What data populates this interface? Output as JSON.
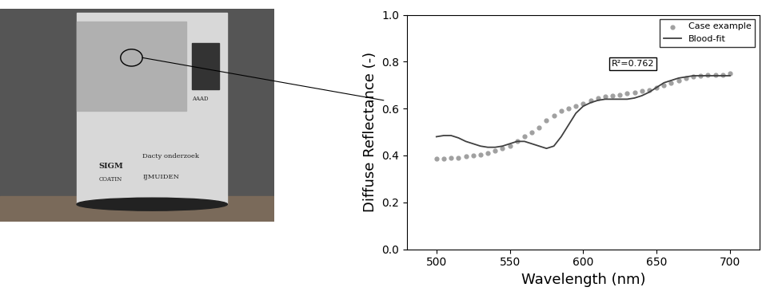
{
  "chart_data": {
    "type": "scatter",
    "xlabel": "Wavelength (nm)",
    "ylabel": "Diffuse Reflectance (-)",
    "xlim": [
      480,
      720
    ],
    "xticks": [
      500,
      550,
      600,
      650,
      700
    ],
    "ylim": [
      0.0,
      1.0
    ],
    "yticks": [
      0.0,
      0.2,
      0.4,
      0.6,
      0.8,
      1.0
    ],
    "legend": "upper right",
    "annotation": "R²=0.762",
    "x": [
      500,
      505,
      510,
      515,
      520,
      525,
      530,
      535,
      540,
      545,
      550,
      555,
      560,
      565,
      570,
      575,
      580,
      585,
      590,
      595,
      600,
      605,
      610,
      615,
      620,
      625,
      630,
      635,
      640,
      645,
      650,
      655,
      660,
      665,
      670,
      675,
      680,
      685,
      690,
      695,
      700
    ],
    "series": [
      {
        "name": "Case example",
        "type": "scatter",
        "color": "#a0a0a0",
        "marker": "o",
        "values": [
          0.385,
          0.385,
          0.39,
          0.39,
          0.395,
          0.4,
          0.405,
          0.41,
          0.42,
          0.43,
          0.44,
          0.46,
          0.48,
          0.5,
          0.52,
          0.55,
          0.57,
          0.59,
          0.6,
          0.61,
          0.62,
          0.635,
          0.645,
          0.65,
          0.655,
          0.66,
          0.665,
          0.67,
          0.675,
          0.68,
          0.69,
          0.7,
          0.71,
          0.72,
          0.73,
          0.735,
          0.74,
          0.745,
          0.745,
          0.745,
          0.75
        ]
      },
      {
        "name": "Blood-fit",
        "type": "line",
        "color": "#404040",
        "line_style": "solid",
        "values": [
          0.48,
          0.485,
          0.485,
          0.475,
          0.46,
          0.45,
          0.44,
          0.435,
          0.435,
          0.44,
          0.45,
          0.46,
          0.46,
          0.45,
          0.44,
          0.43,
          0.44,
          0.48,
          0.53,
          0.58,
          0.61,
          0.625,
          0.635,
          0.64,
          0.64,
          0.64,
          0.64,
          0.645,
          0.655,
          0.67,
          0.69,
          0.71,
          0.72,
          0.73,
          0.735,
          0.74,
          0.74,
          0.74,
          0.74,
          0.74,
          0.74
        ]
      }
    ]
  },
  "photo": {
    "texts": [
      "SIGM",
      "COATIN",
      "Dacty onderzoek",
      "IJMUIDEN",
      "AAAD"
    ]
  }
}
